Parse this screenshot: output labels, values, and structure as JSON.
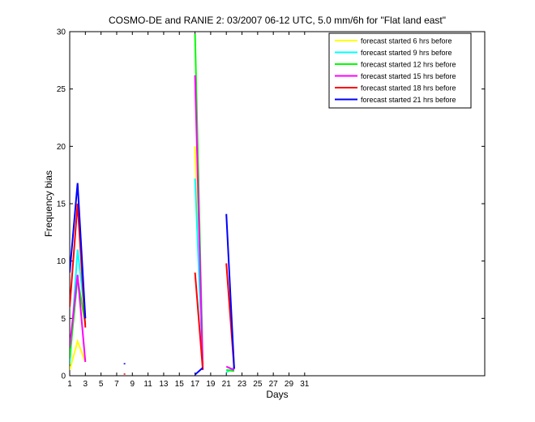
{
  "chart_data": {
    "type": "line",
    "title": "COSMO-DE and RANIE 2: 03/2007 06-12 UTC, 5.0 mm/6h for \"Flat land east\"",
    "xlabel": "Days",
    "ylabel": "Frequency bias",
    "xlim": [
      1,
      54
    ],
    "ylim": [
      0,
      30
    ],
    "xticks": [
      1,
      3,
      5,
      7,
      9,
      11,
      13,
      15,
      17,
      19,
      21,
      23,
      25,
      27,
      29,
      31
    ],
    "yticks": [
      0,
      5,
      10,
      15,
      20,
      25,
      30
    ],
    "grid": false,
    "legend_position": "top-right",
    "series": [
      {
        "name": "forecast started 6 hrs before",
        "color": "#ffff00",
        "segments": [
          [
            [
              1,
              0.5
            ],
            [
              2,
              3.0
            ],
            [
              3,
              1.2
            ]
          ],
          [
            [
              17,
              20.0
            ],
            [
              18,
              1.0
            ]
          ]
        ]
      },
      {
        "name": "forecast started 9 hrs before",
        "color": "#00ffff",
        "segments": [
          [
            [
              1,
              1.0
            ],
            [
              2,
              11.0
            ],
            [
              3,
              5.0
            ]
          ],
          [
            [
              17,
              17.2
            ],
            [
              18,
              0.8
            ]
          ],
          [
            [
              21,
              0.3
            ],
            [
              22,
              0.7
            ]
          ]
        ]
      },
      {
        "name": "forecast started 12 hrs before",
        "color": "#00ff00",
        "segments": [
          [
            [
              1,
              1.5
            ],
            [
              2,
              8.5
            ],
            [
              3,
              4.5
            ]
          ],
          [
            [
              17,
              29.8
            ],
            [
              18,
              1.0
            ]
          ],
          [
            [
              21,
              0.5
            ],
            [
              22,
              0.4
            ]
          ]
        ]
      },
      {
        "name": "forecast started 15 hrs before",
        "color": "#ff00ff",
        "segments": [
          [
            [
              1,
              2.5
            ],
            [
              2,
              8.8
            ],
            [
              3,
              1.2
            ]
          ],
          [
            [
              17,
              26.2
            ],
            [
              18,
              0.6
            ]
          ],
          [
            [
              21,
              0.8
            ],
            [
              22,
              0.5
            ]
          ]
        ]
      },
      {
        "name": "forecast started 18 hrs before",
        "color": "#ff0000",
        "segments": [
          [
            [
              1,
              6.0
            ],
            [
              2,
              15.0
            ],
            [
              3,
              4.2
            ]
          ],
          [
            [
              8,
              0.2
            ]
          ],
          [
            [
              17,
              9.0
            ],
            [
              18,
              0.5
            ]
          ],
          [
            [
              21,
              9.8
            ],
            [
              22,
              0.6
            ]
          ]
        ]
      },
      {
        "name": "forecast started 21 hrs before",
        "color": "#0000ff",
        "segments": [
          [
            [
              1,
              9.0
            ],
            [
              2,
              16.8
            ],
            [
              3,
              5.0
            ]
          ],
          [
            [
              8,
              1.1
            ]
          ],
          [
            [
              17,
              0.1
            ],
            [
              18,
              0.7
            ]
          ],
          [
            [
              21,
              14.1
            ],
            [
              22,
              0.6
            ]
          ]
        ]
      }
    ]
  }
}
